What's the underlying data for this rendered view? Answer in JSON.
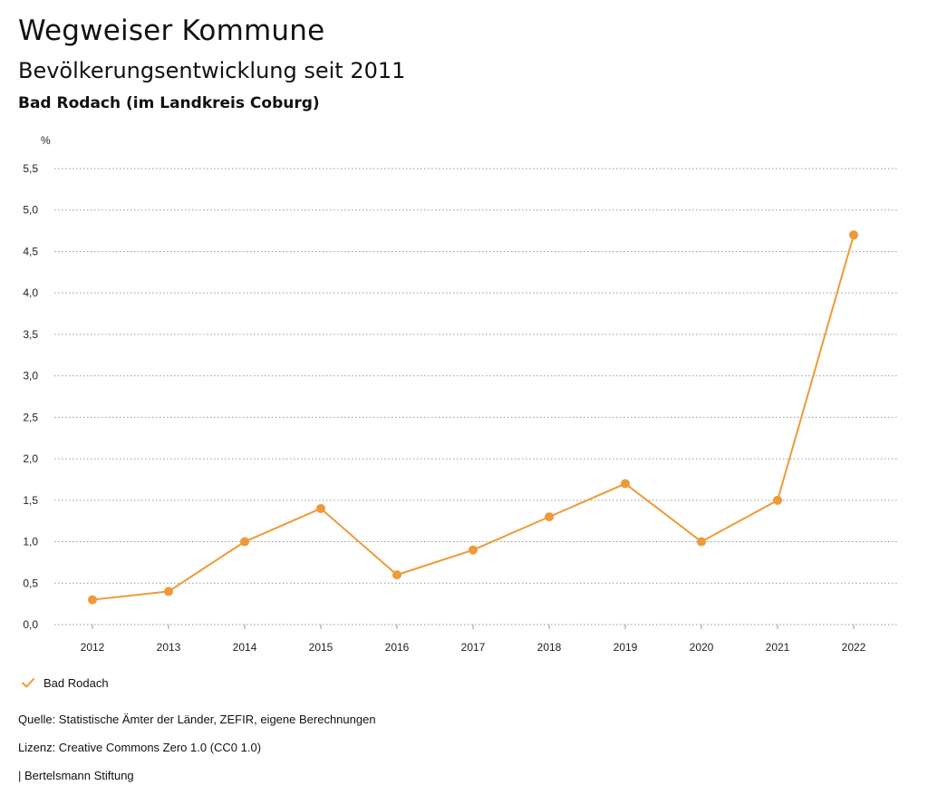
{
  "header": {
    "title": "Wegweiser Kommune",
    "subtitle": "Bevölkerungsentwicklung seit 2011",
    "region": "Bad Rodach (im Landkreis Coburg)"
  },
  "chart_data": {
    "type": "line",
    "unit": "%",
    "categories": [
      "2012",
      "2013",
      "2014",
      "2015",
      "2016",
      "2017",
      "2018",
      "2019",
      "2020",
      "2021",
      "2022"
    ],
    "series": [
      {
        "name": "Bad Rodach",
        "color": "#ee9a38",
        "values": [
          0.3,
          0.4,
          1.0,
          1.4,
          0.6,
          0.9,
          1.3,
          1.7,
          1.0,
          1.5,
          4.7
        ]
      }
    ],
    "ylim": [
      0,
      5.5
    ],
    "yticks": [
      "0,0",
      "0,5",
      "1,0",
      "1,5",
      "2,0",
      "2,5",
      "3,0",
      "3,5",
      "4,0",
      "4,5",
      "5,0",
      "5,5"
    ],
    "grid": true,
    "legend_position": "bottom-left"
  },
  "legend": {
    "label": "Bad Rodach",
    "icon": "check-icon"
  },
  "footer": {
    "source": "Quelle: Statistische Ämter der Länder, ZEFIR, eigene Berechnungen",
    "license": "Lizenz: Creative Commons Zero 1.0 (CC0 1.0)",
    "publisher": "| Bertelsmann Stiftung"
  }
}
